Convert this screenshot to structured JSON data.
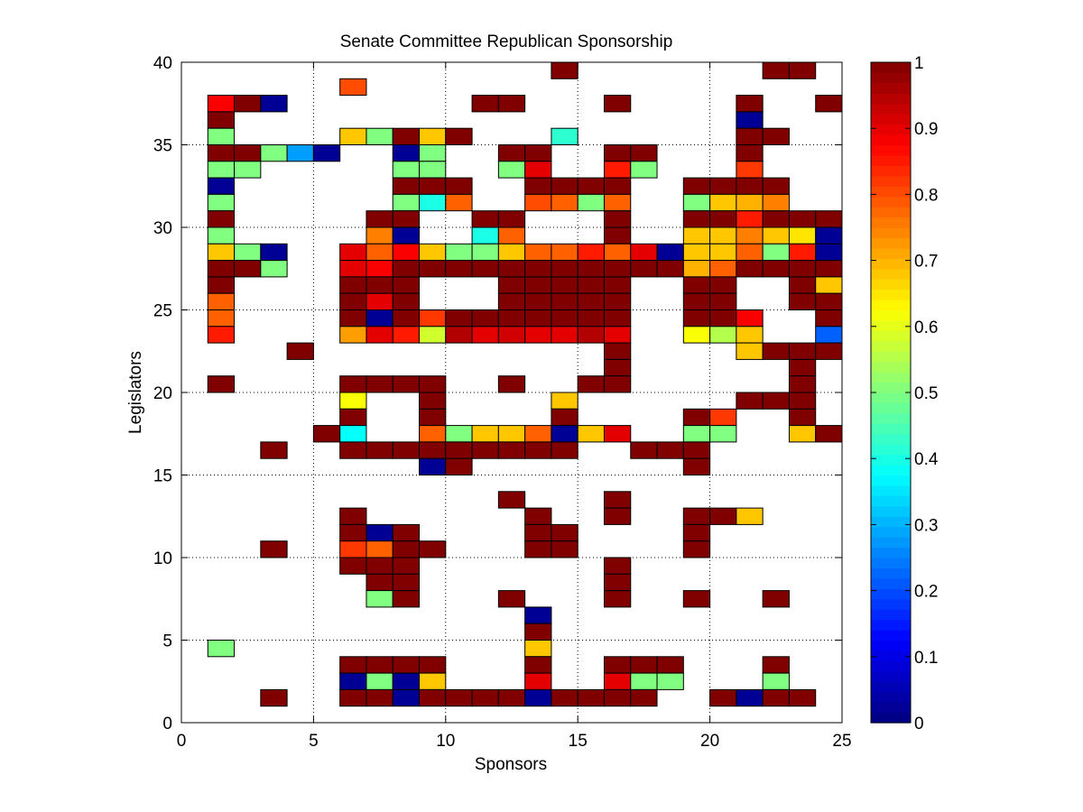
{
  "chart_data": {
    "type": "heatmap",
    "title": "Senate Committee Republican Sponsorship",
    "xlabel": "Sponsors",
    "ylabel": "Legislators",
    "xlim": [
      0,
      25
    ],
    "ylim": [
      0,
      40
    ],
    "xticks": [
      0,
      5,
      10,
      15,
      20,
      25
    ],
    "yticks": [
      0,
      5,
      10,
      15,
      20,
      25,
      30,
      35,
      40
    ],
    "grid": "dotted",
    "colormap": "jet",
    "colorbar": {
      "range": [
        0,
        1
      ],
      "ticks": [
        "0",
        "0.1",
        "0.2",
        "0.3",
        "0.4",
        "0.5",
        "0.6",
        "0.7",
        "0.8",
        "0.9",
        "1"
      ],
      "position": "right"
    },
    "cells": [
      [
        6,
        38,
        0.8
      ],
      [
        14,
        39,
        1
      ],
      [
        22,
        39,
        1
      ],
      [
        23,
        39,
        1
      ],
      [
        1,
        37,
        0.88
      ],
      [
        2,
        37,
        1
      ],
      [
        3,
        37,
        0.02
      ],
      [
        11,
        37,
        1
      ],
      [
        12,
        37,
        1
      ],
      [
        16,
        37,
        1
      ],
      [
        21,
        37,
        1
      ],
      [
        24,
        37,
        1
      ],
      [
        1,
        36,
        1
      ],
      [
        21,
        36,
        0.02
      ],
      [
        1,
        35,
        0.5
      ],
      [
        6,
        35,
        0.68
      ],
      [
        7,
        35,
        0.5
      ],
      [
        8,
        35,
        1
      ],
      [
        9,
        35,
        0.68
      ],
      [
        10,
        35,
        1
      ],
      [
        14,
        35,
        0.42
      ],
      [
        21,
        35,
        1
      ],
      [
        22,
        35,
        1
      ],
      [
        1,
        34,
        1
      ],
      [
        2,
        34,
        1
      ],
      [
        3,
        34,
        0.5
      ],
      [
        4,
        34,
        0.28
      ],
      [
        5,
        34,
        0.02
      ],
      [
        8,
        34,
        0.02
      ],
      [
        9,
        34,
        0.5
      ],
      [
        12,
        34,
        1
      ],
      [
        13,
        34,
        1
      ],
      [
        16,
        34,
        1
      ],
      [
        17,
        34,
        1
      ],
      [
        21,
        34,
        1
      ],
      [
        1,
        33,
        0.5
      ],
      [
        2,
        33,
        0.5
      ],
      [
        8,
        33,
        0.5
      ],
      [
        9,
        33,
        0.5
      ],
      [
        12,
        33,
        0.5
      ],
      [
        13,
        33,
        0.9
      ],
      [
        16,
        33,
        0.85
      ],
      [
        17,
        33,
        0.5
      ],
      [
        21,
        33,
        0.82
      ],
      [
        1,
        32,
        0.02
      ],
      [
        8,
        32,
        1
      ],
      [
        9,
        32,
        1
      ],
      [
        10,
        32,
        1
      ],
      [
        13,
        32,
        1
      ],
      [
        14,
        32,
        1
      ],
      [
        15,
        32,
        1
      ],
      [
        16,
        32,
        1
      ],
      [
        19,
        32,
        1
      ],
      [
        20,
        32,
        1
      ],
      [
        21,
        32,
        1
      ],
      [
        22,
        32,
        1
      ],
      [
        1,
        31,
        0.5
      ],
      [
        8,
        31,
        0.5
      ],
      [
        9,
        31,
        0.4
      ],
      [
        10,
        31,
        0.78
      ],
      [
        13,
        31,
        0.8
      ],
      [
        14,
        31,
        0.78
      ],
      [
        15,
        31,
        0.5
      ],
      [
        16,
        31,
        0.78
      ],
      [
        19,
        31,
        0.5
      ],
      [
        20,
        31,
        0.68
      ],
      [
        21,
        31,
        0.7
      ],
      [
        22,
        31,
        0.75
      ],
      [
        1,
        30,
        1
      ],
      [
        7,
        30,
        1
      ],
      [
        8,
        30,
        1
      ],
      [
        11,
        30,
        1
      ],
      [
        12,
        30,
        1
      ],
      [
        16,
        30,
        1
      ],
      [
        19,
        30,
        1
      ],
      [
        20,
        30,
        1
      ],
      [
        21,
        30,
        0.85
      ],
      [
        22,
        30,
        1
      ],
      [
        23,
        30,
        1
      ],
      [
        24,
        30,
        1
      ],
      [
        1,
        29,
        0.5
      ],
      [
        7,
        29,
        0.75
      ],
      [
        8,
        29,
        0.02
      ],
      [
        11,
        29,
        0.4
      ],
      [
        12,
        29,
        0.78
      ],
      [
        16,
        29,
        1
      ],
      [
        19,
        29,
        0.68
      ],
      [
        20,
        29,
        0.68
      ],
      [
        21,
        29,
        0.75
      ],
      [
        22,
        29,
        0.68
      ],
      [
        23,
        29,
        0.65
      ],
      [
        24,
        29,
        0.02
      ],
      [
        1,
        28,
        0.68
      ],
      [
        2,
        28,
        0.5
      ],
      [
        3,
        28,
        0.02
      ],
      [
        6,
        28,
        0.9
      ],
      [
        7,
        28,
        0.78
      ],
      [
        8,
        28,
        0.88
      ],
      [
        9,
        28,
        0.68
      ],
      [
        10,
        28,
        0.5
      ],
      [
        11,
        28,
        0.5
      ],
      [
        12,
        28,
        0.68
      ],
      [
        13,
        28,
        0.78
      ],
      [
        14,
        28,
        0.78
      ],
      [
        15,
        28,
        0.85
      ],
      [
        16,
        28,
        0.78
      ],
      [
        17,
        28,
        0.9
      ],
      [
        18,
        28,
        0.02
      ],
      [
        19,
        28,
        0.68
      ],
      [
        20,
        28,
        0.68
      ],
      [
        21,
        28,
        0.78
      ],
      [
        22,
        28,
        0.5
      ],
      [
        23,
        28,
        0.85
      ],
      [
        24,
        28,
        0.02
      ],
      [
        1,
        27,
        1
      ],
      [
        2,
        27,
        1
      ],
      [
        3,
        27,
        0.5
      ],
      [
        6,
        27,
        0.9
      ],
      [
        7,
        27,
        0.88
      ],
      [
        8,
        27,
        1
      ],
      [
        9,
        27,
        1
      ],
      [
        10,
        27,
        1
      ],
      [
        11,
        27,
        1
      ],
      [
        12,
        27,
        1
      ],
      [
        13,
        27,
        1
      ],
      [
        14,
        27,
        1
      ],
      [
        15,
        27,
        1
      ],
      [
        16,
        27,
        1
      ],
      [
        17,
        27,
        1
      ],
      [
        18,
        27,
        1
      ],
      [
        19,
        27,
        0.7
      ],
      [
        20,
        27,
        0.78
      ],
      [
        21,
        27,
        1
      ],
      [
        22,
        27,
        1
      ],
      [
        23,
        27,
        1
      ],
      [
        24,
        27,
        1
      ],
      [
        1,
        26,
        1
      ],
      [
        6,
        26,
        1
      ],
      [
        7,
        26,
        1
      ],
      [
        8,
        26,
        1
      ],
      [
        12,
        26,
        1
      ],
      [
        13,
        26,
        1
      ],
      [
        14,
        26,
        1
      ],
      [
        15,
        26,
        1
      ],
      [
        16,
        26,
        1
      ],
      [
        19,
        26,
        1
      ],
      [
        20,
        26,
        1
      ],
      [
        23,
        26,
        1
      ],
      [
        24,
        26,
        0.68
      ],
      [
        1,
        25,
        0.78
      ],
      [
        6,
        25,
        1
      ],
      [
        7,
        25,
        0.9
      ],
      [
        8,
        25,
        1
      ],
      [
        12,
        25,
        1
      ],
      [
        13,
        25,
        1
      ],
      [
        14,
        25,
        1
      ],
      [
        15,
        25,
        1
      ],
      [
        16,
        25,
        1
      ],
      [
        19,
        25,
        1
      ],
      [
        20,
        25,
        1
      ],
      [
        23,
        25,
        1
      ],
      [
        24,
        25,
        1
      ],
      [
        1,
        24,
        0.78
      ],
      [
        6,
        24,
        1
      ],
      [
        7,
        24,
        0.02
      ],
      [
        8,
        24,
        1
      ],
      [
        9,
        24,
        0.82
      ],
      [
        10,
        24,
        1
      ],
      [
        11,
        24,
        1
      ],
      [
        12,
        24,
        1
      ],
      [
        13,
        24,
        1
      ],
      [
        14,
        24,
        1
      ],
      [
        15,
        24,
        1
      ],
      [
        16,
        24,
        1
      ],
      [
        19,
        24,
        1
      ],
      [
        20,
        24,
        1
      ],
      [
        21,
        24,
        0.88
      ],
      [
        24,
        24,
        1
      ],
      [
        1,
        23,
        0.85
      ],
      [
        6,
        23,
        0.72
      ],
      [
        7,
        23,
        0.9
      ],
      [
        8,
        23,
        0.85
      ],
      [
        9,
        23,
        0.58
      ],
      [
        10,
        23,
        0.95
      ],
      [
        11,
        23,
        0.9
      ],
      [
        12,
        23,
        0.92
      ],
      [
        13,
        23,
        0.9
      ],
      [
        14,
        23,
        0.9
      ],
      [
        15,
        23,
        0.95
      ],
      [
        16,
        23,
        0.9
      ],
      [
        19,
        23,
        0.62
      ],
      [
        20,
        23,
        0.55
      ],
      [
        21,
        23,
        0.68
      ],
      [
        24,
        23,
        0.22
      ],
      [
        4,
        22,
        1
      ],
      [
        16,
        22,
        1
      ],
      [
        21,
        22,
        0.68
      ],
      [
        22,
        22,
        1
      ],
      [
        23,
        22,
        1
      ],
      [
        24,
        22,
        1
      ],
      [
        16,
        21,
        1
      ],
      [
        23,
        21,
        1
      ],
      [
        1,
        20,
        1
      ],
      [
        6,
        20,
        1
      ],
      [
        7,
        20,
        1
      ],
      [
        8,
        20,
        1
      ],
      [
        9,
        20,
        1
      ],
      [
        12,
        20,
        1
      ],
      [
        15,
        20,
        1
      ],
      [
        16,
        20,
        1
      ],
      [
        23,
        20,
        1
      ],
      [
        6,
        19,
        0.62
      ],
      [
        9,
        19,
        1
      ],
      [
        14,
        19,
        0.68
      ],
      [
        21,
        19,
        1
      ],
      [
        22,
        19,
        1
      ],
      [
        23,
        19,
        1
      ],
      [
        6,
        18,
        1
      ],
      [
        9,
        18,
        1
      ],
      [
        14,
        18,
        1
      ],
      [
        19,
        18,
        1
      ],
      [
        20,
        18,
        0.82
      ],
      [
        23,
        18,
        1
      ],
      [
        5,
        17,
        1
      ],
      [
        6,
        17,
        0.38
      ],
      [
        9,
        17,
        0.78
      ],
      [
        10,
        17,
        0.5
      ],
      [
        11,
        17,
        0.68
      ],
      [
        12,
        17,
        0.68
      ],
      [
        13,
        17,
        0.78
      ],
      [
        14,
        17,
        0.02
      ],
      [
        15,
        17,
        0.68
      ],
      [
        16,
        17,
        0.9
      ],
      [
        19,
        17,
        0.5
      ],
      [
        20,
        17,
        0.5
      ],
      [
        23,
        17,
        0.68
      ],
      [
        24,
        17,
        1
      ],
      [
        3,
        16,
        1
      ],
      [
        6,
        16,
        1
      ],
      [
        7,
        16,
        1
      ],
      [
        8,
        16,
        1
      ],
      [
        9,
        16,
        1
      ],
      [
        10,
        16,
        1
      ],
      [
        11,
        16,
        1
      ],
      [
        12,
        16,
        1
      ],
      [
        13,
        16,
        1
      ],
      [
        14,
        16,
        1
      ],
      [
        17,
        16,
        1
      ],
      [
        18,
        16,
        1
      ],
      [
        19,
        16,
        1
      ],
      [
        9,
        15,
        0.02
      ],
      [
        10,
        15,
        1
      ],
      [
        19,
        15,
        1
      ],
      [
        12,
        13,
        1
      ],
      [
        16,
        13,
        1
      ],
      [
        6,
        12,
        1
      ],
      [
        13,
        12,
        1
      ],
      [
        16,
        12,
        1
      ],
      [
        19,
        12,
        1
      ],
      [
        20,
        12,
        1
      ],
      [
        21,
        12,
        0.68
      ],
      [
        6,
        11,
        1
      ],
      [
        7,
        11,
        0.02
      ],
      [
        8,
        11,
        1
      ],
      [
        13,
        11,
        1
      ],
      [
        14,
        11,
        1
      ],
      [
        19,
        11,
        1
      ],
      [
        3,
        10,
        1
      ],
      [
        6,
        10,
        0.82
      ],
      [
        7,
        10,
        0.78
      ],
      [
        8,
        10,
        1
      ],
      [
        9,
        10,
        1
      ],
      [
        13,
        10,
        1
      ],
      [
        14,
        10,
        1
      ],
      [
        19,
        10,
        1
      ],
      [
        6,
        9,
        1
      ],
      [
        7,
        9,
        1
      ],
      [
        8,
        9,
        1
      ],
      [
        16,
        9,
        1
      ],
      [
        7,
        8,
        1
      ],
      [
        8,
        8,
        1
      ],
      [
        16,
        8,
        1
      ],
      [
        7,
        7,
        0.5
      ],
      [
        8,
        7,
        1
      ],
      [
        12,
        7,
        1
      ],
      [
        16,
        7,
        1
      ],
      [
        19,
        7,
        1
      ],
      [
        22,
        7,
        1
      ],
      [
        13,
        6,
        0.02
      ],
      [
        13,
        5,
        1
      ],
      [
        1,
        4,
        0.5
      ],
      [
        13,
        4,
        0.68
      ],
      [
        6,
        3,
        1
      ],
      [
        7,
        3,
        1
      ],
      [
        8,
        3,
        1
      ],
      [
        9,
        3,
        1
      ],
      [
        13,
        3,
        1
      ],
      [
        16,
        3,
        1
      ],
      [
        17,
        3,
        1
      ],
      [
        18,
        3,
        1
      ],
      [
        22,
        3,
        1
      ],
      [
        6,
        2,
        0.02
      ],
      [
        7,
        2,
        0.5
      ],
      [
        8,
        2,
        0.02
      ],
      [
        9,
        2,
        0.68
      ],
      [
        13,
        2,
        0.9
      ],
      [
        16,
        2,
        0.9
      ],
      [
        17,
        2,
        0.5
      ],
      [
        18,
        2,
        0.5
      ],
      [
        22,
        2,
        0.5
      ],
      [
        3,
        1,
        1
      ],
      [
        6,
        1,
        1
      ],
      [
        7,
        1,
        1
      ],
      [
        8,
        1,
        0.02
      ],
      [
        9,
        1,
        1
      ],
      [
        10,
        1,
        1
      ],
      [
        11,
        1,
        1
      ],
      [
        12,
        1,
        1
      ],
      [
        13,
        1,
        0.02
      ],
      [
        14,
        1,
        1
      ],
      [
        15,
        1,
        1
      ],
      [
        16,
        1,
        1
      ],
      [
        17,
        1,
        1
      ],
      [
        20,
        1,
        1
      ],
      [
        21,
        1,
        0.02
      ],
      [
        22,
        1,
        1
      ],
      [
        23,
        1,
        1
      ]
    ]
  }
}
